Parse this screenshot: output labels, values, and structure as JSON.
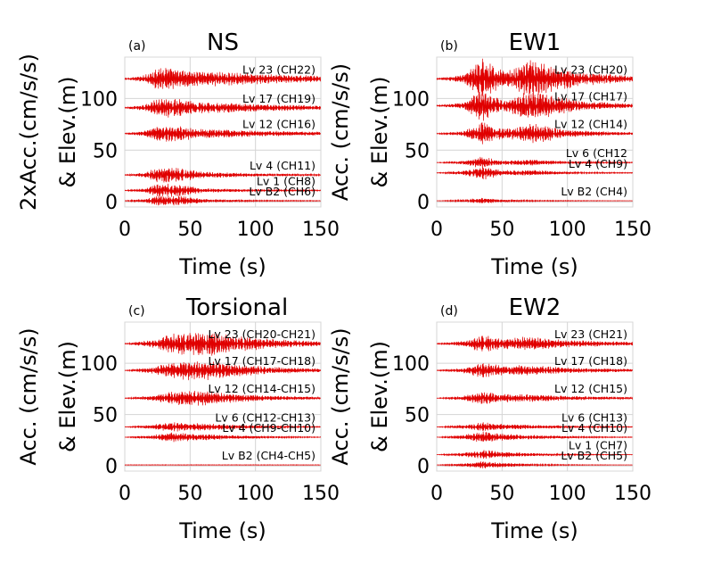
{
  "chart_data": [
    {
      "type": "line",
      "letter": "(a)",
      "title": "NS",
      "xlabel": "Time (s)",
      "ylabel_line1": "2xAcc.(cm/s/s)",
      "ylabel_line2": "& Elev.(m)",
      "xlim": [
        0,
        150
      ],
      "ylim": [
        -5,
        140
      ],
      "xticks": [
        0,
        50,
        100,
        150
      ],
      "yticks": [
        0,
        50,
        100
      ],
      "grid": true,
      "line_color": "#e00000",
      "series": [
        {
          "name": "Lv 23 (CH22)",
          "elevation": 119,
          "amplitude": 12,
          "envelope": [
            [
              0,
              0.05
            ],
            [
              15,
              0.3
            ],
            [
              25,
              0.9
            ],
            [
              35,
              1.0
            ],
            [
              50,
              0.7
            ],
            [
              70,
              0.6
            ],
            [
              100,
              0.45
            ],
            [
              150,
              0.25
            ]
          ]
        },
        {
          "name": "Lv 17 (CH19)",
          "elevation": 91,
          "amplitude": 10,
          "envelope": [
            [
              0,
              0.05
            ],
            [
              15,
              0.3
            ],
            [
              25,
              0.9
            ],
            [
              35,
              1.0
            ],
            [
              55,
              0.6
            ],
            [
              100,
              0.4
            ],
            [
              150,
              0.2
            ]
          ]
        },
        {
          "name": "Lv 12 (CH16)",
          "elevation": 66,
          "amplitude": 9,
          "envelope": [
            [
              0,
              0.05
            ],
            [
              15,
              0.3
            ],
            [
              25,
              0.9
            ],
            [
              35,
              1.0
            ],
            [
              55,
              0.55
            ],
            [
              100,
              0.35
            ],
            [
              150,
              0.2
            ]
          ]
        },
        {
          "name": "Lv 4 (CH11)",
          "elevation": 26,
          "amplitude": 8,
          "envelope": [
            [
              0,
              0.05
            ],
            [
              15,
              0.3
            ],
            [
              25,
              1.0
            ],
            [
              40,
              0.9
            ],
            [
              60,
              0.4
            ],
            [
              100,
              0.2
            ],
            [
              150,
              0.1
            ]
          ]
        },
        {
          "name": "Lv 1 (CH8)",
          "elevation": 11,
          "amplitude": 7,
          "envelope": [
            [
              0,
              0.05
            ],
            [
              15,
              0.3
            ],
            [
              25,
              1.0
            ],
            [
              40,
              0.9
            ],
            [
              60,
              0.3
            ],
            [
              100,
              0.15
            ],
            [
              150,
              0.08
            ]
          ]
        },
        {
          "name": "Lv B2 (CH6)",
          "elevation": 1,
          "amplitude": 6,
          "envelope": [
            [
              0,
              0.05
            ],
            [
              15,
              0.3
            ],
            [
              25,
              1.0
            ],
            [
              40,
              0.9
            ],
            [
              60,
              0.3
            ],
            [
              100,
              0.12
            ],
            [
              150,
              0.06
            ]
          ]
        }
      ]
    },
    {
      "type": "line",
      "letter": "(b)",
      "title": "EW1",
      "xlabel": "Time (s)",
      "ylabel_line1": "Acc. (cm/s/s)",
      "ylabel_line2": "& Elev.(m)",
      "xlim": [
        0,
        150
      ],
      "ylim": [
        -5,
        140
      ],
      "xticks": [
        0,
        50,
        100,
        150
      ],
      "yticks": [
        0,
        50,
        100
      ],
      "grid": true,
      "line_color": "#e00000",
      "series": [
        {
          "name": "Lv 23 (CH20)",
          "elevation": 119,
          "amplitude": 20,
          "envelope": [
            [
              0,
              0.03
            ],
            [
              20,
              0.2
            ],
            [
              35,
              1.0
            ],
            [
              45,
              0.6
            ],
            [
              55,
              0.4
            ],
            [
              70,
              1.0
            ],
            [
              85,
              0.7
            ],
            [
              110,
              0.35
            ],
            [
              150,
              0.15
            ]
          ]
        },
        {
          "name": "Lv 17 (CH17)",
          "elevation": 93,
          "amplitude": 16,
          "envelope": [
            [
              0,
              0.03
            ],
            [
              20,
              0.2
            ],
            [
              35,
              1.0
            ],
            [
              45,
              0.5
            ],
            [
              55,
              0.4
            ],
            [
              70,
              1.0
            ],
            [
              85,
              0.7
            ],
            [
              110,
              0.3
            ],
            [
              150,
              0.12
            ]
          ]
        },
        {
          "name": "Lv 12 (CH14)",
          "elevation": 66,
          "amplitude": 12,
          "envelope": [
            [
              0,
              0.03
            ],
            [
              20,
              0.2
            ],
            [
              35,
              1.0
            ],
            [
              45,
              0.5
            ],
            [
              60,
              0.5
            ],
            [
              75,
              0.9
            ],
            [
              100,
              0.3
            ],
            [
              150,
              0.1
            ]
          ]
        },
        {
          "name": "Lv 6 (CH12",
          "elevation": 38,
          "amplitude": 6,
          "envelope": [
            [
              0,
              0.03
            ],
            [
              20,
              0.3
            ],
            [
              35,
              1.0
            ],
            [
              50,
              0.4
            ],
            [
              75,
              0.5
            ],
            [
              100,
              0.2
            ],
            [
              150,
              0.08
            ]
          ]
        },
        {
          "name": "Lv 4 (CH9)",
          "elevation": 28,
          "amplitude": 7,
          "envelope": [
            [
              0,
              0.03
            ],
            [
              20,
              0.3
            ],
            [
              35,
              1.0
            ],
            [
              50,
              0.4
            ],
            [
              75,
              0.4
            ],
            [
              100,
              0.15
            ],
            [
              150,
              0.06
            ]
          ]
        },
        {
          "name": "Lv B2 (CH4)",
          "elevation": 1,
          "amplitude": 3,
          "envelope": [
            [
              0,
              0.03
            ],
            [
              20,
              0.4
            ],
            [
              35,
              1.0
            ],
            [
              50,
              0.4
            ],
            [
              80,
              0.2
            ],
            [
              150,
              0.05
            ]
          ]
        }
      ]
    },
    {
      "type": "line",
      "letter": "(c)",
      "title": "Torsional",
      "xlabel": "Time (s)",
      "ylabel_line1": "Acc. (cm/s/s)",
      "ylabel_line2": "& Elev.(m)",
      "xlim": [
        0,
        150
      ],
      "ylim": [
        -5,
        140
      ],
      "xticks": [
        0,
        50,
        100,
        150
      ],
      "yticks": [
        0,
        50,
        100
      ],
      "grid": true,
      "line_color": "#e00000",
      "series": [
        {
          "name": "Lv 23 (CH20-CH21)",
          "elevation": 119,
          "amplitude": 12,
          "envelope": [
            [
              0,
              0.03
            ],
            [
              20,
              0.3
            ],
            [
              35,
              0.8
            ],
            [
              50,
              1.0
            ],
            [
              65,
              1.0
            ],
            [
              80,
              0.8
            ],
            [
              110,
              0.4
            ],
            [
              150,
              0.2
            ]
          ]
        },
        {
          "name": "Lv 17 (CH17-CH18)",
          "elevation": 93,
          "amplitude": 10,
          "envelope": [
            [
              0,
              0.03
            ],
            [
              20,
              0.3
            ],
            [
              35,
              0.8
            ],
            [
              50,
              1.0
            ],
            [
              65,
              1.0
            ],
            [
              80,
              0.7
            ],
            [
              110,
              0.35
            ],
            [
              150,
              0.18
            ]
          ]
        },
        {
          "name": "Lv 12 (CH14-CH15)",
          "elevation": 66,
          "amplitude": 8,
          "envelope": [
            [
              0,
              0.03
            ],
            [
              20,
              0.3
            ],
            [
              35,
              0.8
            ],
            [
              50,
              1.0
            ],
            [
              65,
              0.9
            ],
            [
              80,
              0.6
            ],
            [
              110,
              0.3
            ],
            [
              150,
              0.15
            ]
          ]
        },
        {
          "name": "Lv 6 (CH12-CH13)",
          "elevation": 38,
          "amplitude": 5,
          "envelope": [
            [
              0,
              0.03
            ],
            [
              20,
              0.4
            ],
            [
              35,
              1.0
            ],
            [
              50,
              0.8
            ],
            [
              70,
              0.6
            ],
            [
              110,
              0.25
            ],
            [
              150,
              0.1
            ]
          ]
        },
        {
          "name": "Lv 4 (CH9-CH10)",
          "elevation": 28,
          "amplitude": 5,
          "envelope": [
            [
              0,
              0.03
            ],
            [
              20,
              0.4
            ],
            [
              35,
              1.0
            ],
            [
              50,
              0.8
            ],
            [
              70,
              0.5
            ],
            [
              110,
              0.2
            ],
            [
              150,
              0.08
            ]
          ]
        },
        {
          "name": "Lv B2 (CH4-CH5)",
          "elevation": 1,
          "amplitude": 0.6,
          "envelope": [
            [
              0,
              0.5
            ],
            [
              150,
              0.5
            ]
          ]
        }
      ]
    },
    {
      "type": "line",
      "letter": "(d)",
      "title": "EW2",
      "xlabel": "Time (s)",
      "ylabel_line1": "Acc. (cm/s/s)",
      "ylabel_line2": "& Elev.(m)",
      "xlim": [
        0,
        150
      ],
      "ylim": [
        -5,
        140
      ],
      "xticks": [
        0,
        50,
        100,
        150
      ],
      "yticks": [
        0,
        50,
        100
      ],
      "grid": true,
      "line_color": "#e00000",
      "series": [
        {
          "name": "Lv 23 (CH21)",
          "elevation": 119,
          "amplitude": 9,
          "envelope": [
            [
              0,
              0.03
            ],
            [
              20,
              0.3
            ],
            [
              35,
              1.0
            ],
            [
              50,
              0.6
            ],
            [
              70,
              0.8
            ],
            [
              100,
              0.4
            ],
            [
              150,
              0.2
            ]
          ]
        },
        {
          "name": "Lv 17 (CH18)",
          "elevation": 93,
          "amplitude": 8,
          "envelope": [
            [
              0,
              0.03
            ],
            [
              20,
              0.3
            ],
            [
              35,
              1.0
            ],
            [
              50,
              0.6
            ],
            [
              70,
              0.7
            ],
            [
              100,
              0.35
            ],
            [
              150,
              0.18
            ]
          ]
        },
        {
          "name": "Lv 12 (CH15)",
          "elevation": 66,
          "amplitude": 7,
          "envelope": [
            [
              0,
              0.03
            ],
            [
              20,
              0.3
            ],
            [
              35,
              1.0
            ],
            [
              50,
              0.6
            ],
            [
              70,
              0.6
            ],
            [
              100,
              0.3
            ],
            [
              150,
              0.15
            ]
          ]
        },
        {
          "name": "Lv 6 (CH13)",
          "elevation": 38,
          "amplitude": 5,
          "envelope": [
            [
              0,
              0.03
            ],
            [
              20,
              0.4
            ],
            [
              35,
              1.0
            ],
            [
              50,
              0.6
            ],
            [
              75,
              0.4
            ],
            [
              110,
              0.2
            ],
            [
              150,
              0.08
            ]
          ]
        },
        {
          "name": "Lv 4 (CH10)",
          "elevation": 28,
          "amplitude": 6,
          "envelope": [
            [
              0,
              0.03
            ],
            [
              20,
              0.4
            ],
            [
              35,
              1.0
            ],
            [
              50,
              0.6
            ],
            [
              75,
              0.35
            ],
            [
              110,
              0.15
            ],
            [
              150,
              0.06
            ]
          ]
        },
        {
          "name": "Lv 1 (CH7)",
          "elevation": 11,
          "amplitude": 5,
          "envelope": [
            [
              0,
              0.03
            ],
            [
              20,
              0.4
            ],
            [
              35,
              1.0
            ],
            [
              50,
              0.6
            ],
            [
              75,
              0.3
            ],
            [
              110,
              0.12
            ],
            [
              150,
              0.05
            ]
          ]
        },
        {
          "name": "Lv B2 (CH5)",
          "elevation": 1,
          "amplitude": 4,
          "envelope": [
            [
              0,
              0.03
            ],
            [
              20,
              0.4
            ],
            [
              35,
              1.0
            ],
            [
              50,
              0.6
            ],
            [
              75,
              0.25
            ],
            [
              110,
              0.1
            ],
            [
              150,
              0.04
            ]
          ]
        }
      ]
    }
  ]
}
